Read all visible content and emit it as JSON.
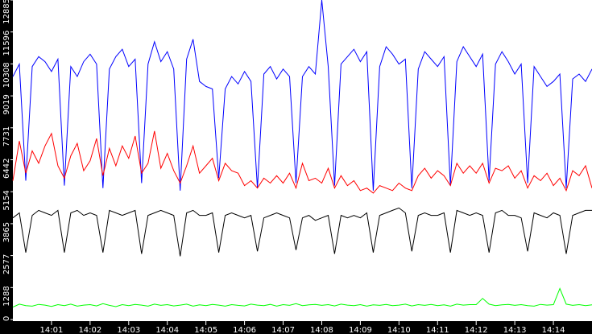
{
  "chart_data": {
    "type": "line",
    "title": "",
    "xlabel": "",
    "ylabel": "",
    "ylim": [
      0,
      12885
    ],
    "xlim": [
      "14:00:00",
      "14:15:00"
    ],
    "grid": false,
    "legend": "none",
    "background": "#ffffff",
    "axis_background": "#000000",
    "y_ticks": [
      "0",
      "1288",
      "2577",
      "3865",
      "5154",
      "6442",
      "7731",
      "9019",
      "10308",
      "11596",
      "12885"
    ],
    "x_ticks": [
      "14:01",
      "14:02",
      "14:03",
      "14:04",
      "14:05",
      "14:06",
      "14:07",
      "14:08",
      "14:09",
      "14:10",
      "14:11",
      "14:12",
      "14:13",
      "14:14"
    ],
    "x": [
      "14:00:00",
      "14:00:10",
      "14:00:20",
      "14:00:30",
      "14:00:40",
      "14:00:50",
      "14:01:00",
      "14:01:10",
      "14:01:20",
      "14:01:30",
      "14:01:40",
      "14:01:50",
      "14:02:00",
      "14:02:10",
      "14:02:20",
      "14:02:30",
      "14:02:40",
      "14:02:50",
      "14:03:00",
      "14:03:10",
      "14:03:20",
      "14:03:30",
      "14:03:40",
      "14:03:50",
      "14:04:00",
      "14:04:10",
      "14:04:20",
      "14:04:30",
      "14:04:40",
      "14:04:50",
      "14:05:00",
      "14:05:10",
      "14:05:20",
      "14:05:30",
      "14:05:40",
      "14:05:50",
      "14:06:00",
      "14:06:10",
      "14:06:20",
      "14:06:30",
      "14:06:40",
      "14:06:50",
      "14:07:00",
      "14:07:10",
      "14:07:20",
      "14:07:30",
      "14:07:40",
      "14:07:50",
      "14:08:00",
      "14:08:10",
      "14:08:20",
      "14:08:30",
      "14:08:40",
      "14:08:50",
      "14:09:00",
      "14:09:10",
      "14:09:20",
      "14:09:30",
      "14:09:40",
      "14:09:50",
      "14:10:00",
      "14:10:10",
      "14:10:20",
      "14:10:30",
      "14:10:40",
      "14:10:50",
      "14:11:00",
      "14:11:10",
      "14:11:20",
      "14:11:30",
      "14:11:40",
      "14:11:50",
      "14:12:00",
      "14:12:10",
      "14:12:20",
      "14:12:30",
      "14:12:40",
      "14:12:50",
      "14:13:00",
      "14:13:10",
      "14:13:20",
      "14:13:30",
      "14:13:40",
      "14:13:50",
      "14:14:00",
      "14:14:10",
      "14:14:20",
      "14:14:30",
      "14:14:40",
      "14:14:50",
      "14:15:00"
    ],
    "series": [
      {
        "color": "#0000ff",
        "values": [
          9800,
          10300,
          5600,
          10200,
          10600,
          10400,
          10000,
          10500,
          5400,
          10200,
          9800,
          10400,
          10700,
          10300,
          5300,
          10100,
          10600,
          10900,
          10200,
          10500,
          5500,
          10300,
          11200,
          10400,
          10800,
          10100,
          5200,
          10500,
          11300,
          9600,
          9400,
          9300,
          5700,
          9300,
          9800,
          9500,
          10000,
          9600,
          5300,
          9900,
          10200,
          9700,
          10100,
          9800,
          5500,
          9800,
          10200,
          9900,
          12885,
          10200,
          5400,
          10300,
          10600,
          10900,
          10400,
          10800,
          5200,
          10200,
          11000,
          10700,
          10300,
          10500,
          5300,
          10100,
          10800,
          10500,
          10200,
          10600,
          5400,
          10400,
          11000,
          10600,
          10200,
          10700,
          5600,
          10300,
          10800,
          10400,
          9900,
          10300,
          5500,
          10200,
          9800,
          9400,
          9600,
          9900,
          5300,
          9700,
          9900,
          9600,
          10100
        ]
      },
      {
        "color": "#ff0000",
        "values": [
          5600,
          7200,
          5900,
          6800,
          6300,
          7000,
          7500,
          6200,
          5700,
          6600,
          7100,
          6000,
          6400,
          7300,
          5800,
          6900,
          6200,
          7000,
          6500,
          7400,
          5900,
          6300,
          7600,
          6100,
          6700,
          6000,
          5500,
          6200,
          7000,
          5900,
          6200,
          6500,
          5600,
          6300,
          6000,
          5900,
          5400,
          5600,
          5300,
          5700,
          5500,
          5800,
          5500,
          5900,
          5300,
          6300,
          5600,
          5700,
          5500,
          6100,
          5300,
          5800,
          5400,
          5600,
          5200,
          5300,
          5100,
          5400,
          5300,
          5200,
          5500,
          5300,
          5200,
          5800,
          6100,
          5700,
          6000,
          5800,
          5400,
          6300,
          5900,
          6200,
          5900,
          6300,
          5500,
          6100,
          6000,
          6200,
          5700,
          6000,
          5300,
          5800,
          5600,
          5900,
          5400,
          5700,
          5200,
          6000,
          5800,
          6200,
          5300
        ]
      },
      {
        "color": "#000000",
        "values": [
          4100,
          4300,
          2700,
          4200,
          4400,
          4300,
          4200,
          4400,
          2700,
          4300,
          4400,
          4200,
          4300,
          4200,
          2700,
          4400,
          4300,
          4200,
          4300,
          4400,
          2650,
          4200,
          4300,
          4400,
          4300,
          4200,
          2550,
          4300,
          4400,
          4200,
          4200,
          4300,
          2700,
          4200,
          4300,
          4200,
          4100,
          4200,
          2750,
          4100,
          4200,
          4300,
          4200,
          4100,
          2800,
          4100,
          4200,
          4000,
          4100,
          4200,
          2650,
          4200,
          4100,
          4200,
          4100,
          4300,
          2700,
          4200,
          4300,
          4400,
          4500,
          4300,
          2750,
          4200,
          4300,
          4200,
          4200,
          4300,
          2700,
          4400,
          4300,
          4200,
          4300,
          4200,
          2700,
          4300,
          4400,
          4200,
          4200,
          4100,
          2750,
          4300,
          4200,
          4100,
          4300,
          4200,
          2650,
          4200,
          4300,
          4400,
          4400
        ]
      },
      {
        "color": "#00ff00",
        "values": [
          500,
          620,
          560,
          540,
          610,
          580,
          530,
          600,
          560,
          620,
          540,
          580,
          600,
          550,
          640,
          570,
          520,
          600,
          560,
          610,
          580,
          540,
          620,
          570,
          600,
          550,
          580,
          620,
          540,
          590,
          560,
          610,
          580,
          540,
          600,
          570,
          550,
          620,
          580,
          560,
          610,
          540,
          600,
          570,
          640,
          560,
          590,
          610,
          570,
          600,
          550,
          620,
          580,
          560,
          600,
          540,
          590,
          570,
          610,
          560,
          580,
          620,
          550,
          600,
          570,
          610,
          560,
          590,
          540,
          620,
          580,
          600,
          600,
          850,
          620,
          560,
          590,
          610,
          570,
          600,
          560,
          540,
          610,
          580,
          600,
          1250,
          620,
          570,
          600,
          560,
          590
        ]
      }
    ]
  }
}
